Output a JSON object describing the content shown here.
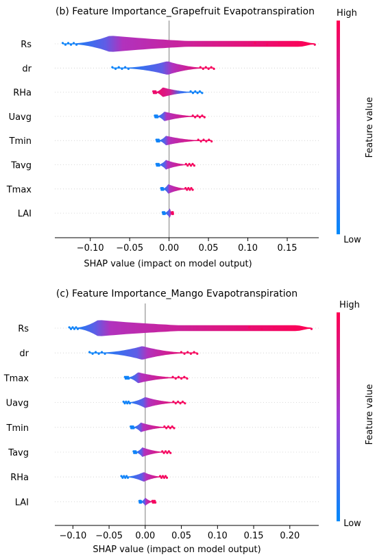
{
  "colors": {
    "low": "#008afb",
    "high": "#ff0052",
    "axis": "#000000",
    "zero_line": "#999999",
    "row_line": "#cccccc"
  },
  "colorbar": {
    "high_label": "High",
    "low_label": "Low",
    "title": "Feature value"
  },
  "chart_data": [
    {
      "type": "beeswarm",
      "title": "(b) Feature Importance_Grapefruit Evapotranspiration",
      "xlabel": "SHAP value (impact on model output)",
      "ylabel": "",
      "xlim": [
        -0.145,
        0.19
      ],
      "xticks": [
        -0.1,
        -0.05,
        0.0,
        0.05,
        0.1,
        0.15
      ],
      "xtick_labels": [
        "−0.10",
        "−0.05",
        "0.00",
        "0.05",
        "0.10",
        "0.15"
      ],
      "features": [
        "Rs",
        "dr",
        "RHa",
        "Uavg",
        "Tmin",
        "Tavg",
        "Tmax",
        "LAI"
      ],
      "series": [
        {
          "feature": "Rs",
          "min": -0.135,
          "max": 0.185,
          "mode": -0.075,
          "low_side": "negative"
        },
        {
          "feature": "dr",
          "min": -0.072,
          "max": 0.057,
          "mode": -0.002,
          "low_side": "negative"
        },
        {
          "feature": "RHa",
          "min": -0.02,
          "max": 0.042,
          "mode": -0.008,
          "low_side": "positive"
        },
        {
          "feature": "Uavg",
          "min": -0.018,
          "max": 0.045,
          "mode": -0.006,
          "low_side": "negative"
        },
        {
          "feature": "Tmin",
          "min": -0.016,
          "max": 0.054,
          "mode": -0.004,
          "low_side": "negative"
        },
        {
          "feature": "Tavg",
          "min": -0.016,
          "max": 0.032,
          "mode": -0.004,
          "low_side": "negative"
        },
        {
          "feature": "Tmax",
          "min": -0.01,
          "max": 0.03,
          "mode": -0.001,
          "low_side": "negative"
        },
        {
          "feature": "LAI",
          "min": -0.008,
          "max": 0.005,
          "mode": 0.001,
          "low_side": "negative"
        }
      ]
    },
    {
      "type": "beeswarm",
      "title": "(c) Feature Importance_Mango Evapotranspiration",
      "xlabel": "SHAP value (impact on model output)",
      "ylabel": "",
      "xlim": [
        -0.125,
        0.24
      ],
      "xticks": [
        -0.1,
        -0.05,
        0.0,
        0.05,
        0.1,
        0.15,
        0.2
      ],
      "xtick_labels": [
        "−0.10",
        "−0.05",
        "0.00",
        "0.05",
        "0.10",
        "0.15",
        "0.20"
      ],
      "features": [
        "Rs",
        "dr",
        "Tmax",
        "Uavg",
        "Tmin",
        "Tavg",
        "RHa",
        "LAI"
      ],
      "series": [
        {
          "feature": "Rs",
          "min": -0.105,
          "max": 0.23,
          "mode": -0.065,
          "low_side": "negative"
        },
        {
          "feature": "dr",
          "min": -0.077,
          "max": 0.072,
          "mode": -0.004,
          "low_side": "negative"
        },
        {
          "feature": "Tmax",
          "min": -0.028,
          "max": 0.058,
          "mode": -0.01,
          "low_side": "negative"
        },
        {
          "feature": "Uavg",
          "min": -0.03,
          "max": 0.055,
          "mode": 0.0,
          "low_side": "negative"
        },
        {
          "feature": "Tmin",
          "min": -0.02,
          "max": 0.04,
          "mode": -0.006,
          "low_side": "negative"
        },
        {
          "feature": "Tavg",
          "min": -0.016,
          "max": 0.035,
          "mode": -0.004,
          "low_side": "negative"
        },
        {
          "feature": "RHa",
          "min": -0.033,
          "max": 0.03,
          "mode": -0.002,
          "low_side": "negative"
        },
        {
          "feature": "LAI",
          "min": -0.008,
          "max": 0.014,
          "mode": 0.0,
          "low_side": "negative"
        }
      ]
    }
  ]
}
